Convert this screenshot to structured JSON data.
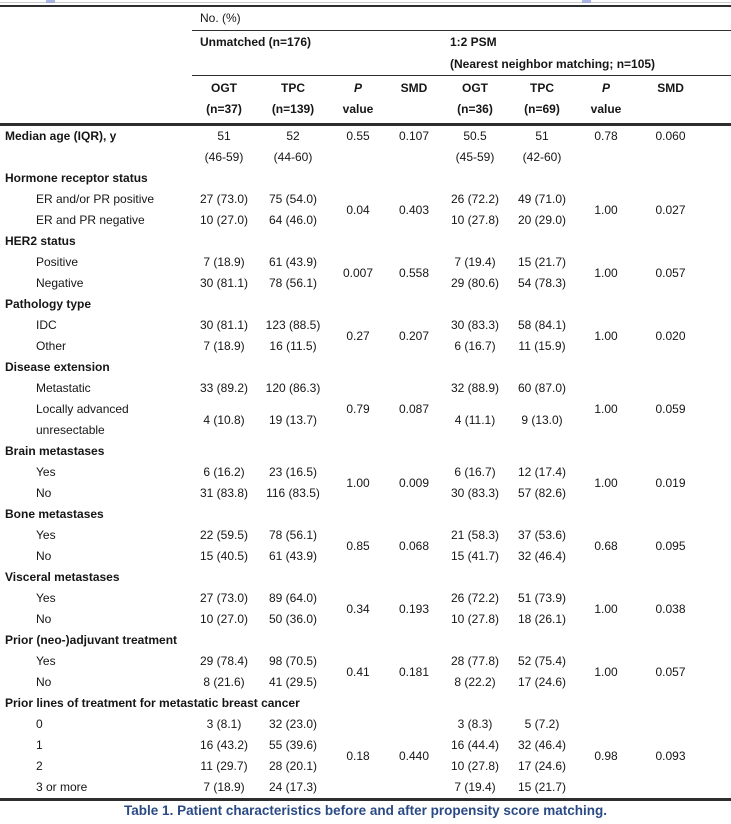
{
  "table": {
    "header": {
      "no_pct": "No. (%)",
      "unmatched": "Unmatched (n=176)",
      "psm_line1": "1:2 PSM",
      "psm_line2": "(Nearest neighbor matching; n=105)",
      "cols": [
        {
          "l1": "OGT",
          "l2": "(n=37)"
        },
        {
          "l1": "TPC",
          "l2": "(n=139)"
        },
        {
          "l1": "P",
          "l2": "value"
        },
        {
          "l1": "SMD",
          "l2": ""
        },
        {
          "l1": "OGT",
          "l2": "(n=36)"
        },
        {
          "l1": "TPC",
          "l2": "(n=69)"
        },
        {
          "l1": "P",
          "l2": "value"
        },
        {
          "l1": "SMD",
          "l2": ""
        }
      ]
    },
    "median": {
      "label": "Median age (IQR), y",
      "o1": "51",
      "o1b": "(46-59)",
      "t1": "52",
      "t1b": "(44-60)",
      "p1": "0.55",
      "s1": "0.107",
      "o2": "50.5",
      "o2b": "(45-59)",
      "t2": "51",
      "t2b": "(42-60)",
      "p2": "0.78",
      "s2": "0.060"
    },
    "groups": [
      {
        "label": "Hormone receptor status",
        "rows": [
          {
            "label": "ER and/or PR positive",
            "c": [
              "27 (73.0)",
              "75 (54.0)",
              "26 (72.2)",
              "49 (71.0)"
            ]
          },
          {
            "label": "ER and PR negative",
            "c": [
              "10 (27.0)",
              "64 (46.0)",
              "10 (27.8)",
              "20 (29.0)"
            ]
          }
        ],
        "p1": "0.04",
        "s1": "0.403",
        "p2": "1.00",
        "s2": "0.027"
      },
      {
        "label": "HER2 status",
        "rows": [
          {
            "label": "Positive",
            "c": [
              "7 (18.9)",
              "61 (43.9)",
              "7 (19.4)",
              "15 (21.7)"
            ]
          },
          {
            "label": "Negative",
            "c": [
              "30 (81.1)",
              "78 (56.1)",
              "29 (80.6)",
              "54 (78.3)"
            ]
          }
        ],
        "p1": "0.007",
        "s1": "0.558",
        "p2": "1.00",
        "s2": "0.057"
      },
      {
        "label": "Pathology type",
        "rows": [
          {
            "label": "IDC",
            "c": [
              "30 (81.1)",
              "123 (88.5)",
              "30 (83.3)",
              "58 (84.1)"
            ]
          },
          {
            "label": "Other",
            "c": [
              "7 (18.9)",
              "16 (11.5)",
              "6 (16.7)",
              "11 (15.9)"
            ]
          }
        ],
        "p1": "0.27",
        "s1": "0.207",
        "p2": "1.00",
        "s2": "0.020"
      },
      {
        "label": "Disease extension",
        "rows": [
          {
            "label": "Metastatic",
            "c": [
              "33 (89.2)",
              "120 (86.3)",
              "32 (88.9)",
              "60 (87.0)"
            ]
          },
          {
            "label": "Locally advanced unresectable",
            "c": [
              "4 (10.8)",
              "19 (13.7)",
              "4 (11.1)",
              "9 (13.0)"
            ]
          }
        ],
        "p1": "0.79",
        "s1": "0.087",
        "p2": "1.00",
        "s2": "0.059"
      },
      {
        "label": "Brain metastases",
        "rows": [
          {
            "label": "Yes",
            "c": [
              "6 (16.2)",
              "23 (16.5)",
              "6 (16.7)",
              "12 (17.4)"
            ]
          },
          {
            "label": "No",
            "c": [
              "31 (83.8)",
              "116 (83.5)",
              "30 (83.3)",
              "57 (82.6)"
            ]
          }
        ],
        "p1": "1.00",
        "s1": "0.009",
        "p2": "1.00",
        "s2": "0.019"
      },
      {
        "label": "Bone metastases",
        "rows": [
          {
            "label": "Yes",
            "c": [
              "22 (59.5)",
              "78 (56.1)",
              "21 (58.3)",
              "37 (53.6)"
            ]
          },
          {
            "label": "No",
            "c": [
              "15 (40.5)",
              "61 (43.9)",
              "15 (41.7)",
              "32 (46.4)"
            ]
          }
        ],
        "p1": "0.85",
        "s1": "0.068",
        "p2": "0.68",
        "s2": "0.095"
      },
      {
        "label": "Visceral metastases",
        "rows": [
          {
            "label": "Yes",
            "c": [
              "27 (73.0)",
              "89 (64.0)",
              "26 (72.2)",
              "51 (73.9)"
            ]
          },
          {
            "label": "No",
            "c": [
              "10 (27.0)",
              "50 (36.0)",
              "10 (27.8)",
              "18 (26.1)"
            ]
          }
        ],
        "p1": "0.34",
        "s1": "0.193",
        "p2": "1.00",
        "s2": "0.038"
      },
      {
        "label": "Prior (neo-)adjuvant treatment",
        "rows": [
          {
            "label": "Yes",
            "c": [
              "29 (78.4)",
              "98 (70.5)",
              "28 (77.8)",
              "52 (75.4)"
            ]
          },
          {
            "label": "No",
            "c": [
              "8 (21.6)",
              "41 (29.5)",
              "8 (22.2)",
              "17 (24.6)"
            ]
          }
        ],
        "p1": "0.41",
        "s1": "0.181",
        "p2": "1.00",
        "s2": "0.057"
      }
    ],
    "prior_lines": {
      "label": "Prior lines of treatment for metastatic breast cancer",
      "rows": [
        {
          "label": "0",
          "c": [
            "3 (8.1)",
            "32 (23.0)",
            "3 (8.3)",
            "5 (7.2)"
          ]
        },
        {
          "label": "1",
          "c": [
            "16 (43.2)",
            "55 (39.6)",
            "16 (44.4)",
            "32 (46.4)"
          ]
        },
        {
          "label": "2",
          "c": [
            "11 (29.7)",
            "28 (20.1)",
            "10 (27.8)",
            "17 (24.6)"
          ]
        },
        {
          "label": "3 or more",
          "c": [
            "7 (18.9)",
            "24 (17.3)",
            "7 (19.4)",
            "15 (21.7)"
          ]
        }
      ],
      "p1": "0.18",
      "s1": "0.440",
      "p2": "0.98",
      "s2": "0.093"
    }
  },
  "caption": "Table 1. Patient characteristics before and after propensity score matching.",
  "colors": {
    "caption_text": "#2a4a85",
    "table_rule": "#2e2e2e",
    "top_artifact_speck": "#95a2dc"
  }
}
